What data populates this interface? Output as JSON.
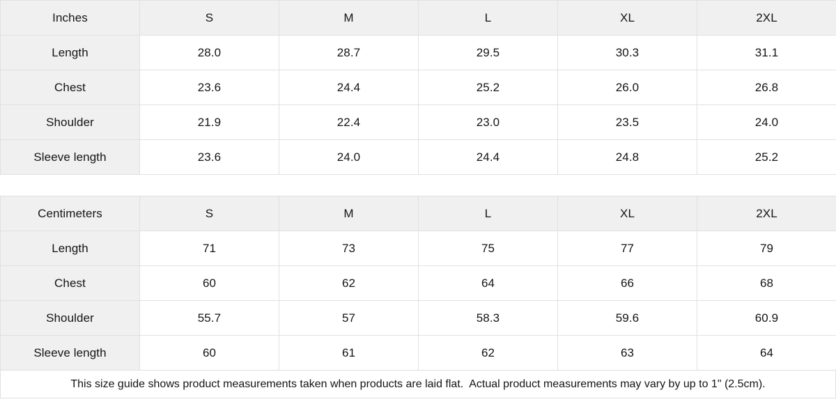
{
  "colors": {
    "header_background": "#f0f0f0",
    "border": "#e0e0e0",
    "text": "#141414",
    "cell_background": "#ffffff"
  },
  "tables": [
    {
      "unit_label": "Inches",
      "size_headers": [
        "S",
        "M",
        "L",
        "XL",
        "2XL"
      ],
      "rows": [
        {
          "label": "Length",
          "values": [
            "28.0",
            "28.7",
            "29.5",
            "30.3",
            "31.1"
          ]
        },
        {
          "label": "Chest",
          "values": [
            "23.6",
            "24.4",
            "25.2",
            "26.0",
            "26.8"
          ]
        },
        {
          "label": "Shoulder",
          "values": [
            "21.9",
            "22.4",
            "23.0",
            "23.5",
            "24.0"
          ]
        },
        {
          "label": "Sleeve length",
          "values": [
            "23.6",
            "24.0",
            "24.4",
            "24.8",
            "25.2"
          ]
        }
      ]
    },
    {
      "unit_label": "Centimeters",
      "size_headers": [
        "S",
        "M",
        "L",
        "XL",
        "2XL"
      ],
      "rows": [
        {
          "label": "Length",
          "values": [
            "71",
            "73",
            "75",
            "77",
            "79"
          ]
        },
        {
          "label": "Chest",
          "values": [
            "60",
            "62",
            "64",
            "66",
            "68"
          ]
        },
        {
          "label": "Shoulder",
          "values": [
            "55.7",
            "57",
            "58.3",
            "59.6",
            "60.9"
          ]
        },
        {
          "label": "Sleeve length",
          "values": [
            "60",
            "61",
            "62",
            "63",
            "64"
          ]
        }
      ]
    }
  ],
  "footer": {
    "note": "This size guide shows product measurements taken when products are laid flat.  Actual product measurements may vary by up to 1\" (2.5cm)."
  }
}
